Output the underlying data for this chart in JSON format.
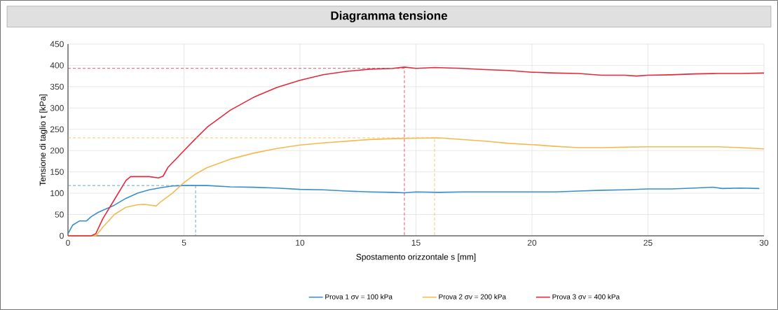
{
  "chart_data": {
    "type": "line",
    "title": "Diagramma tensione",
    "xlabel": "Spostamento orizzontale s [mm]",
    "ylabel": "Tensione di taglio τ [kPa]",
    "xlim": [
      0,
      30
    ],
    "xticks": [
      0,
      5,
      10,
      15,
      20,
      25,
      30
    ],
    "ylim": [
      0,
      450
    ],
    "yticks": [
      0,
      50,
      100,
      150,
      200,
      250,
      300,
      350,
      400,
      450
    ],
    "grid": true,
    "legend": "bottom",
    "series": [
      {
        "name": "Prova  1 σv = 100 kPa",
        "color": "#3a8fc9",
        "x": [
          0,
          0.2,
          0.5,
          0.8,
          1.0,
          1.3,
          2,
          2.5,
          3,
          3.5,
          4,
          4.5,
          5,
          6,
          7,
          8,
          9,
          10,
          11,
          12,
          13,
          14,
          14.5,
          15,
          16,
          17,
          18,
          19,
          20,
          21,
          22,
          23,
          24,
          25,
          26,
          27,
          27.8,
          28.2,
          29,
          29.8
        ],
        "values": [
          5,
          25,
          35,
          35,
          45,
          55,
          72,
          88,
          100,
          108,
          113,
          117,
          118,
          118,
          115,
          114,
          112,
          109,
          108,
          105,
          103,
          102,
          101,
          103,
          102,
          103,
          103,
          103,
          103,
          103,
          105,
          107,
          108,
          110,
          110,
          112,
          114,
          111,
          112,
          111
        ]
      },
      {
        "name": "Prova  2 σv = 200 kPa",
        "color": "#f5b94f",
        "x": [
          0,
          1.2,
          1.5,
          2,
          2.5,
          3,
          3.3,
          3.8,
          4,
          4.5,
          5,
          5.5,
          6,
          7,
          8,
          9,
          10,
          11,
          12,
          13,
          14,
          15,
          16,
          17,
          18,
          19,
          20,
          21,
          22,
          23,
          24,
          25,
          26,
          27,
          28,
          29,
          30
        ],
        "values": [
          0,
          0,
          20,
          50,
          67,
          73,
          74,
          70,
          80,
          100,
          125,
          145,
          160,
          180,
          194,
          205,
          213,
          218,
          222,
          226,
          228,
          229,
          230,
          226,
          222,
          217,
          214,
          210,
          207,
          207,
          208,
          209,
          209,
          209,
          209,
          207,
          204
        ]
      },
      {
        "name": "Prova  3 σv = 400 kPa",
        "color": "#e8283a",
        "x": [
          0,
          1,
          1.2,
          1.5,
          2,
          2.5,
          2.7,
          3,
          3.5,
          3.9,
          4.1,
          4.3,
          5,
          5.5,
          6,
          7,
          8,
          9,
          10,
          11,
          12,
          13,
          14,
          14.5,
          15,
          15.8,
          17,
          18,
          19,
          20,
          21,
          22,
          23,
          24,
          24.5,
          25,
          26,
          27,
          28,
          29,
          30
        ],
        "values": [
          0,
          0,
          5,
          40,
          85,
          130,
          139,
          139,
          139,
          136,
          140,
          160,
          200,
          228,
          255,
          295,
          325,
          348,
          365,
          378,
          386,
          391,
          393,
          396,
          393,
          395,
          393,
          390,
          388,
          384,
          382,
          381,
          377,
          377,
          375,
          377,
          378,
          380,
          381,
          381,
          382
        ]
      },
      {
        "color": "#3a8fc9",
        "line_style": "dashed",
        "x": [
          0,
          5.5,
          5.5
        ],
        "values": [
          118,
          118,
          0
        ]
      },
      {
        "color": "#f5b94f",
        "line_style": "dashed",
        "x": [
          0,
          15.8,
          15.8
        ],
        "values": [
          230,
          230,
          0
        ]
      },
      {
        "color": "#e8283a",
        "line_style": "dashed",
        "x": [
          0,
          14.5,
          14.5
        ],
        "values": [
          393,
          393,
          0
        ]
      }
    ]
  }
}
